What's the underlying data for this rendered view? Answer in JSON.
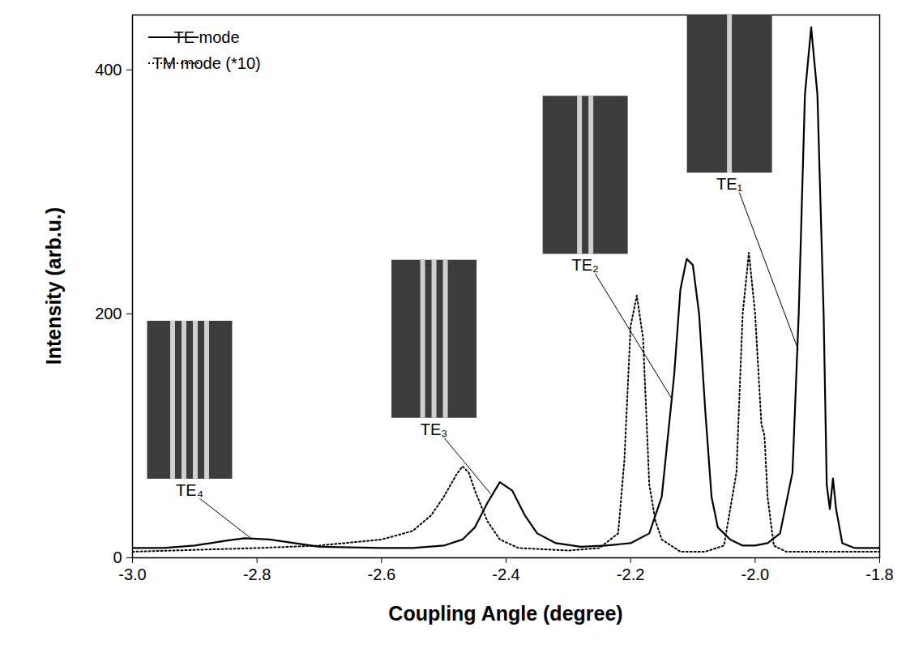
{
  "chart_data": {
    "type": "line",
    "x_label": "Coupling Angle (degree)",
    "y_label": "Intensity (arb.u.)",
    "xlim": [
      -3.0,
      -1.8
    ],
    "xticks": [
      {
        "value": -3.0,
        "label": "-3.0"
      },
      {
        "value": -2.8,
        "label": "-2.8"
      },
      {
        "value": -2.6,
        "label": "-2.6"
      },
      {
        "value": -2.4,
        "label": "-2.4"
      },
      {
        "value": -2.2,
        "label": "-2.2"
      },
      {
        "value": -2.0,
        "label": "-2.0"
      },
      {
        "value": -1.8,
        "label": "-1.8"
      }
    ],
    "ylim": [
      0,
      445
    ],
    "yticks": [
      0,
      200,
      400
    ],
    "grid": false,
    "legend": "top-left",
    "series": [
      {
        "name": "TE mode",
        "color": "#000000",
        "line_style": "solid",
        "x": [
          -3.0,
          -2.95,
          -2.9,
          -2.85,
          -2.82,
          -2.78,
          -2.74,
          -2.7,
          -2.6,
          -2.55,
          -2.5,
          -2.47,
          -2.45,
          -2.43,
          -2.41,
          -2.39,
          -2.37,
          -2.35,
          -2.32,
          -2.28,
          -2.24,
          -2.2,
          -2.17,
          -2.15,
          -2.13,
          -2.12,
          -2.11,
          -2.1,
          -2.09,
          -2.08,
          -2.07,
          -2.06,
          -2.05,
          -2.04,
          -2.02,
          -2.0,
          -1.98,
          -1.96,
          -1.94,
          -1.93,
          -1.92,
          -1.91,
          -1.9,
          -1.89,
          -1.885,
          -1.88,
          -1.875,
          -1.87,
          -1.86,
          -1.84,
          -1.8
        ],
        "values": [
          8,
          8,
          10,
          14,
          16,
          15,
          12,
          9,
          8,
          8,
          10,
          15,
          25,
          45,
          62,
          55,
          35,
          20,
          12,
          9,
          10,
          12,
          20,
          50,
          150,
          220,
          245,
          240,
          200,
          120,
          50,
          25,
          20,
          15,
          10,
          10,
          12,
          20,
          70,
          200,
          380,
          435,
          380,
          200,
          60,
          40,
          65,
          40,
          12,
          8,
          8
        ]
      },
      {
        "name": "TM mode (*10)",
        "color": "#000000",
        "line_style": "dotted",
        "x": [
          -3.0,
          -2.8,
          -2.7,
          -2.6,
          -2.55,
          -2.52,
          -2.5,
          -2.48,
          -2.47,
          -2.46,
          -2.45,
          -2.43,
          -2.41,
          -2.38,
          -2.3,
          -2.25,
          -2.22,
          -2.21,
          -2.2,
          -2.19,
          -2.18,
          -2.17,
          -2.16,
          -2.15,
          -2.12,
          -2.08,
          -2.05,
          -2.03,
          -2.02,
          -2.01,
          -2.0,
          -1.99,
          -1.985,
          -1.98,
          -1.97,
          -1.95,
          -1.8
        ],
        "values": [
          5,
          8,
          10,
          15,
          22,
          35,
          50,
          68,
          75,
          70,
          55,
          30,
          15,
          8,
          6,
          8,
          20,
          80,
          190,
          215,
          180,
          60,
          30,
          15,
          5,
          5,
          10,
          70,
          200,
          250,
          200,
          110,
          100,
          50,
          10,
          5,
          5
        ]
      }
    ],
    "annotations": [
      {
        "text": "TE₁",
        "x": -1.93,
        "y": 170
      },
      {
        "text": "TE₂",
        "x": -2.133,
        "y": 130
      },
      {
        "text": "TE₃",
        "x": -2.424,
        "y": 52
      },
      {
        "text": "TE₄",
        "x": -2.81,
        "y": 16
      }
    ]
  }
}
